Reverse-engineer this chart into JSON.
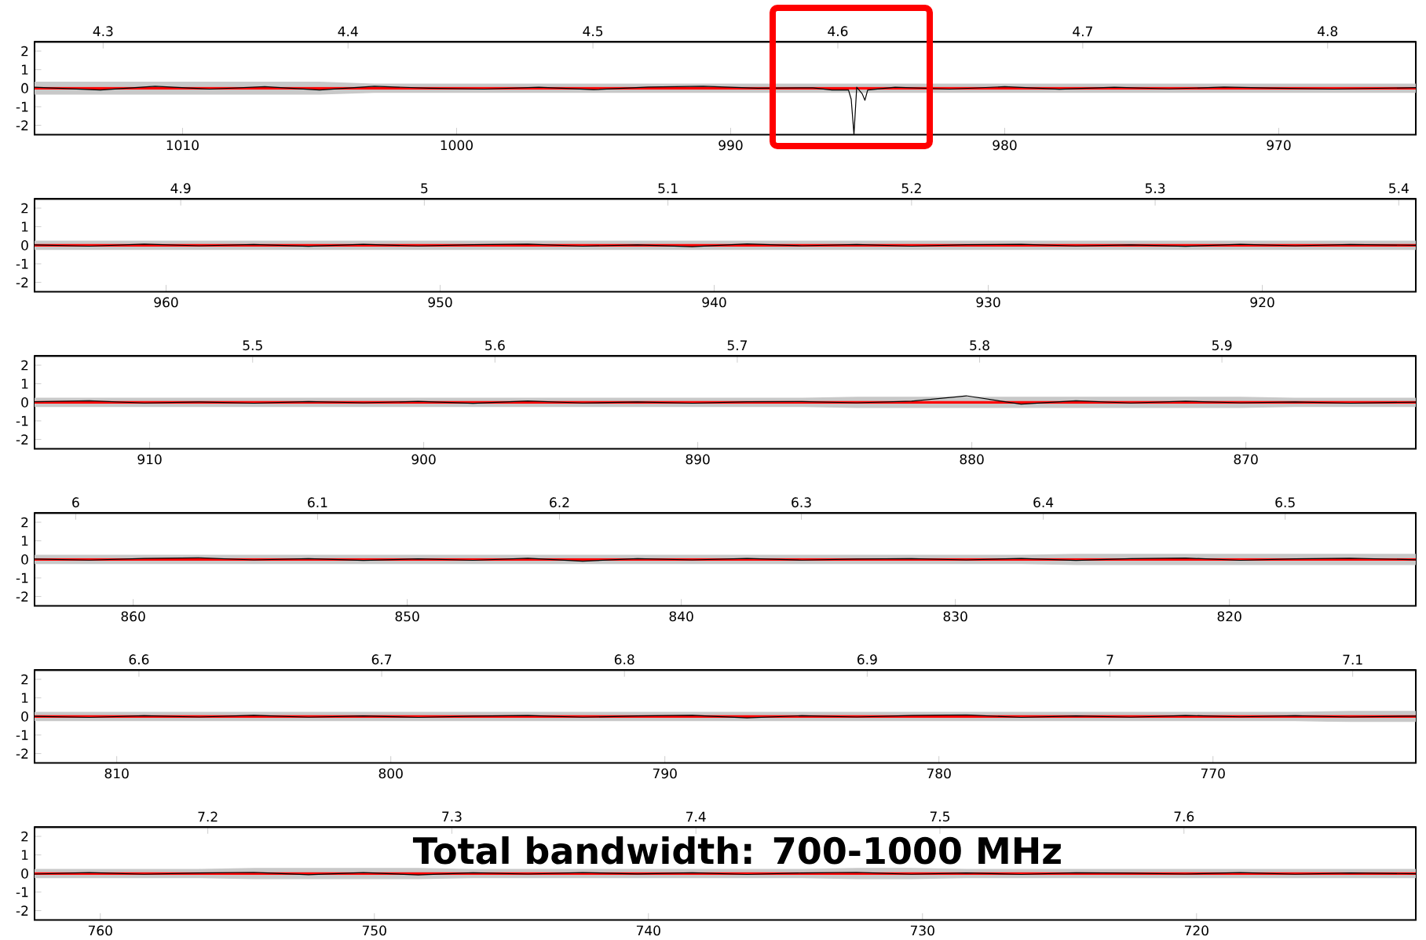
{
  "chart_data": [
    {
      "type": "line",
      "xlim": [
        1015.4,
        965.0
      ],
      "xticks": [
        1010,
        1000,
        990,
        980,
        970
      ],
      "x2lim": [
        4.272,
        4.836
      ],
      "x2ticks": [
        4.3,
        4.4,
        4.5,
        4.6,
        4.7,
        4.8
      ],
      "ylim": [
        -2.5,
        2.5
      ],
      "yticks": [
        -2,
        -1,
        0,
        1,
        2
      ],
      "series": [
        {
          "color": "#ff0000",
          "x": [
            1015.4,
            965.0
          ],
          "values": [
            0,
            0
          ]
        },
        {
          "color": "#000000",
          "x": [
            1015.4,
            1013,
            1011,
            1009,
            1007,
            1005,
            1003,
            1001,
            999,
            997,
            995,
            993,
            991,
            989,
            987,
            986.3,
            985.7,
            985.6,
            985.5,
            985.4,
            985.2,
            985.1,
            985.0,
            984,
            982,
            980,
            978,
            976,
            974,
            972,
            970,
            968,
            965.0
          ],
          "values": [
            0.05,
            -0.1,
            0.1,
            -0.05,
            0.08,
            -0.1,
            0.1,
            0,
            -0.05,
            0.05,
            -0.08,
            0.06,
            0.1,
            0,
            0.02,
            -0.1,
            -0.1,
            -0.6,
            -2.5,
            0.05,
            -0.3,
            -0.65,
            -0.1,
            0.05,
            -0.05,
            0.08,
            -0.06,
            0.05,
            -0.04,
            0.06,
            0,
            -0.05,
            0.03
          ],
          "lower": [
            -0.35,
            -0.35,
            -0.35,
            -0.35,
            -0.35,
            -0.35,
            -0.25,
            -0.25,
            -0.25,
            -0.25,
            -0.25,
            -0.25,
            -0.25,
            -0.25,
            -0.25,
            -0.25,
            -0.25,
            -0.25,
            -0.25,
            -0.25,
            -0.25,
            -0.25,
            -0.25,
            -0.25,
            -0.25,
            -0.25,
            -0.25,
            -0.25,
            -0.25,
            -0.25,
            -0.25,
            -0.25,
            -0.25
          ],
          "upper": [
            0.35,
            0.35,
            0.35,
            0.35,
            0.35,
            0.35,
            0.25,
            0.25,
            0.25,
            0.25,
            0.25,
            0.25,
            0.25,
            0.25,
            0.25,
            0.25,
            0.25,
            0.25,
            0.25,
            0.25,
            0.25,
            0.25,
            0.25,
            0.25,
            0.25,
            0.25,
            0.25,
            0.25,
            0.25,
            0.25,
            0.25,
            0.25,
            0.25
          ]
        }
      ]
    },
    {
      "type": "line",
      "xlim": [
        964.8,
        914.4
      ],
      "xticks": [
        960,
        950,
        940,
        930,
        920
      ],
      "x2lim": [
        4.84,
        5.407
      ],
      "x2ticks": [
        4.9,
        5,
        5.1,
        5.2,
        5.3,
        5.4
      ],
      "ylim": [
        -2.5,
        2.5
      ],
      "yticks": [
        -2,
        -1,
        0,
        1,
        2
      ],
      "series": [
        {
          "color": "#ff0000",
          "x": [
            964.8,
            914.4
          ],
          "values": [
            0,
            0
          ]
        },
        {
          "color": "#000000",
          "x": [
            964.8,
            962.8,
            960.8,
            958.8,
            956.8,
            954.8,
            952.8,
            950.8,
            948.8,
            946.8,
            944.8,
            942.8,
            940.8,
            938.8,
            936.8,
            934.8,
            932.8,
            930.8,
            928.8,
            926.8,
            924.8,
            922.8,
            920.8,
            918.8,
            916.8,
            914.4
          ],
          "values": [
            0.02,
            -0.05,
            0.06,
            -0.03,
            0.04,
            -0.06,
            0.05,
            -0.04,
            0.03,
            0.06,
            -0.05,
            0.02,
            -0.08,
            0.07,
            -0.03,
            0.04,
            -0.05,
            0.03,
            0.05,
            -0.04,
            0.02,
            -0.06,
            0.05,
            -0.03,
            0.04,
            0
          ],
          "lower": [
            -0.25,
            -0.25,
            -0.25,
            -0.25,
            -0.25,
            -0.25,
            -0.25,
            -0.25,
            -0.25,
            -0.25,
            -0.25,
            -0.25,
            -0.25,
            -0.25,
            -0.25,
            -0.25,
            -0.25,
            -0.25,
            -0.25,
            -0.25,
            -0.25,
            -0.25,
            -0.25,
            -0.25,
            -0.25,
            -0.25
          ],
          "upper": [
            0.25,
            0.25,
            0.25,
            0.25,
            0.25,
            0.25,
            0.25,
            0.25,
            0.25,
            0.25,
            0.25,
            0.25,
            0.25,
            0.25,
            0.25,
            0.25,
            0.25,
            0.25,
            0.25,
            0.25,
            0.25,
            0.25,
            0.25,
            0.25,
            0.25,
            0.25
          ]
        }
      ]
    },
    {
      "type": "line",
      "xlim": [
        914.2,
        863.8
      ],
      "xticks": [
        910,
        900,
        890,
        880,
        870
      ],
      "x2lim": [
        5.41,
        5.98
      ],
      "x2ticks": [
        5.5,
        5.6,
        5.7,
        5.8,
        5.9
      ],
      "ylim": [
        -2.5,
        2.5
      ],
      "yticks": [
        -2,
        -1,
        0,
        1,
        2
      ],
      "series": [
        {
          "color": "#ff0000",
          "x": [
            914.2,
            863.8
          ],
          "values": [
            0,
            0
          ]
        },
        {
          "color": "#000000",
          "x": [
            914.2,
            912.2,
            910.2,
            908.2,
            906.2,
            904.2,
            902.2,
            900.2,
            898.2,
            896.2,
            894.2,
            892.2,
            890.2,
            888.2,
            886.2,
            884.2,
            882.2,
            880.2,
            878.2,
            876.2,
            874.2,
            872.2,
            870.2,
            868.2,
            866.2,
            863.8
          ],
          "values": [
            0.03,
            0.08,
            -0.04,
            0.02,
            -0.05,
            0.04,
            -0.03,
            0.05,
            -0.06,
            0.07,
            -0.04,
            0.02,
            -0.05,
            0.03,
            0.04,
            -0.03,
            0.06,
            0.35,
            -0.1,
            0.08,
            -0.04,
            0.06,
            -0.03,
            0.02,
            -0.05,
            0.01
          ],
          "lower": [
            -0.25,
            -0.25,
            -0.25,
            -0.25,
            -0.25,
            -0.25,
            -0.25,
            -0.25,
            -0.25,
            -0.25,
            -0.25,
            -0.25,
            -0.25,
            -0.25,
            -0.25,
            -0.3,
            -0.3,
            -0.3,
            -0.3,
            -0.3,
            -0.3,
            -0.3,
            -0.3,
            -0.25,
            -0.25,
            -0.25
          ],
          "upper": [
            0.25,
            0.25,
            0.25,
            0.25,
            0.25,
            0.25,
            0.25,
            0.25,
            0.25,
            0.25,
            0.25,
            0.25,
            0.25,
            0.25,
            0.25,
            0.3,
            0.3,
            0.3,
            0.3,
            0.3,
            0.3,
            0.3,
            0.3,
            0.25,
            0.25,
            0.25
          ]
        }
      ]
    },
    {
      "type": "line",
      "xlim": [
        863.6,
        813.2
      ],
      "xticks": [
        860,
        850,
        840,
        830,
        820
      ],
      "x2lim": [
        5.983,
        6.554
      ],
      "x2ticks": [
        6,
        6.1,
        6.2,
        6.3,
        6.4,
        6.5
      ],
      "ylim": [
        -2.5,
        2.5
      ],
      "yticks": [
        -2,
        -1,
        0,
        1,
        2
      ],
      "series": [
        {
          "color": "#ff0000",
          "x": [
            863.6,
            813.2
          ],
          "values": [
            0,
            0
          ]
        },
        {
          "color": "#000000",
          "x": [
            863.6,
            861.6,
            859.6,
            857.6,
            855.6,
            853.6,
            851.6,
            849.6,
            847.6,
            845.6,
            843.6,
            841.6,
            839.6,
            837.6,
            835.6,
            833.6,
            831.6,
            829.6,
            827.6,
            825.6,
            823.6,
            821.6,
            819.6,
            817.6,
            815.6,
            813.2
          ],
          "values": [
            0.02,
            -0.04,
            0.05,
            0.08,
            -0.03,
            0.04,
            -0.06,
            0.03,
            -0.05,
            0.06,
            -0.1,
            0.04,
            -0.03,
            0.05,
            -0.04,
            0.02,
            0.04,
            -0.03,
            0.05,
            -0.06,
            0.04,
            0.07,
            -0.05,
            0.03,
            0.06,
            -0.02
          ],
          "lower": [
            -0.25,
            -0.25,
            -0.25,
            -0.25,
            -0.25,
            -0.25,
            -0.25,
            -0.25,
            -0.25,
            -0.25,
            -0.25,
            -0.25,
            -0.25,
            -0.25,
            -0.25,
            -0.25,
            -0.25,
            -0.25,
            -0.25,
            -0.3,
            -0.3,
            -0.3,
            -0.3,
            -0.3,
            -0.3,
            -0.3
          ],
          "upper": [
            0.25,
            0.25,
            0.25,
            0.25,
            0.25,
            0.25,
            0.25,
            0.25,
            0.25,
            0.25,
            0.25,
            0.25,
            0.25,
            0.25,
            0.25,
            0.25,
            0.25,
            0.25,
            0.25,
            0.3,
            0.3,
            0.3,
            0.3,
            0.3,
            0.3,
            0.3
          ]
        }
      ]
    },
    {
      "type": "line",
      "xlim": [
        813.0,
        762.6
      ],
      "xticks": [
        810,
        800,
        790,
        780,
        770
      ],
      "x2lim": [
        6.557,
        7.126
      ],
      "x2ticks": [
        6.6,
        6.7,
        6.8,
        6.9,
        7,
        7.1
      ],
      "ylim": [
        -2.5,
        2.5
      ],
      "yticks": [
        -2,
        -1,
        0,
        1,
        2
      ],
      "series": [
        {
          "color": "#ff0000",
          "x": [
            813.0,
            762.6
          ],
          "values": [
            0,
            0
          ]
        },
        {
          "color": "#000000",
          "x": [
            813.0,
            811.0,
            809.0,
            807.0,
            805.0,
            803.0,
            801.0,
            799.0,
            797.0,
            795.0,
            793.0,
            791.0,
            789.0,
            787.0,
            785.0,
            783.0,
            781.0,
            779.0,
            777.0,
            775.0,
            773.0,
            771.0,
            769.0,
            767.0,
            765.0,
            762.6
          ],
          "values": [
            0.01,
            -0.05,
            0.04,
            -0.03,
            0.06,
            -0.04,
            0.03,
            -0.05,
            0.02,
            0.05,
            -0.04,
            0.03,
            0.06,
            -0.08,
            0.04,
            -0.03,
            0.05,
            0.08,
            -0.05,
            0.03,
            -0.04,
            0.05,
            -0.02,
            0.04,
            -0.03,
            0.02
          ],
          "lower": [
            -0.25,
            -0.25,
            -0.25,
            -0.25,
            -0.25,
            -0.25,
            -0.25,
            -0.25,
            -0.25,
            -0.25,
            -0.25,
            -0.25,
            -0.25,
            -0.25,
            -0.25,
            -0.25,
            -0.25,
            -0.25,
            -0.25,
            -0.25,
            -0.25,
            -0.25,
            -0.25,
            -0.25,
            -0.3,
            -0.3
          ],
          "upper": [
            0.25,
            0.25,
            0.25,
            0.25,
            0.25,
            0.25,
            0.25,
            0.25,
            0.25,
            0.25,
            0.25,
            0.25,
            0.25,
            0.25,
            0.25,
            0.25,
            0.25,
            0.25,
            0.25,
            0.25,
            0.25,
            0.25,
            0.25,
            0.25,
            0.3,
            0.3
          ]
        }
      ]
    },
    {
      "type": "line",
      "xlim": [
        762.4,
        712.0
      ],
      "xticks": [
        760,
        750,
        740,
        730,
        720
      ],
      "x2lim": [
        7.129,
        7.695
      ],
      "x2ticks": [
        7.2,
        7.3,
        7.4,
        7.5,
        7.6
      ],
      "ylim": [
        -2.5,
        2.5
      ],
      "yticks": [
        -2,
        -1,
        0,
        1,
        2
      ],
      "annotations": [
        "**Total bandwidth: 700-1000 MHz**"
      ],
      "series": [
        {
          "color": "#ff0000",
          "x": [
            762.4,
            712.0
          ],
          "values": [
            0,
            0
          ]
        },
        {
          "color": "#000000",
          "x": [
            762.4,
            760.4,
            758.4,
            756.4,
            754.4,
            752.4,
            750.4,
            748.4,
            746.4,
            744.4,
            742.4,
            740.4,
            738.4,
            736.4,
            734.4,
            732.4,
            730.4,
            728.4,
            726.4,
            724.4,
            722.4,
            720.4,
            718.4,
            716.4,
            714.4,
            712.0
          ],
          "values": [
            -0.03,
            0.05,
            -0.04,
            0.03,
            0.06,
            -0.07,
            0.05,
            -0.08,
            0.04,
            -0.03,
            0.05,
            -0.02,
            0.04,
            -0.05,
            0.03,
            0.06,
            -0.04,
            0.03,
            -0.05,
            0.04,
            0.02,
            -0.03,
            0.05,
            -0.04,
            0.03,
            -0.01
          ],
          "lower": [
            -0.25,
            -0.25,
            -0.25,
            -0.25,
            -0.3,
            -0.3,
            -0.3,
            -0.3,
            -0.25,
            -0.25,
            -0.25,
            -0.25,
            -0.25,
            -0.25,
            -0.25,
            -0.3,
            -0.3,
            -0.25,
            -0.25,
            -0.25,
            -0.25,
            -0.25,
            -0.25,
            -0.25,
            -0.25,
            -0.25
          ],
          "upper": [
            0.25,
            0.25,
            0.25,
            0.25,
            0.3,
            0.3,
            0.3,
            0.3,
            0.25,
            0.25,
            0.25,
            0.25,
            0.25,
            0.25,
            0.25,
            0.3,
            0.3,
            0.25,
            0.25,
            0.25,
            0.25,
            0.25,
            0.25,
            0.25,
            0.25,
            0.25
          ]
        }
      ]
    }
  ]
}
